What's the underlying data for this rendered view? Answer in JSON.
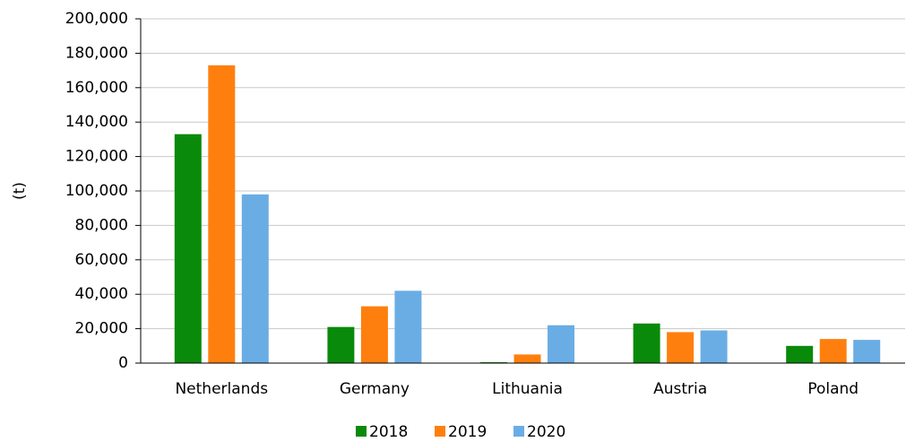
{
  "chart_data": {
    "type": "bar",
    "y_label": "(t)",
    "categories": [
      "Netherlands",
      "Germany",
      "Lithuania",
      "Austria",
      "Poland"
    ],
    "series": [
      {
        "name": "2018",
        "color": "#0a8a0a",
        "values": [
          133000,
          21000,
          500,
          23000,
          10000
        ]
      },
      {
        "name": "2019",
        "color": "#ff7f0e",
        "values": [
          173000,
          33000,
          5000,
          18000,
          14000
        ]
      },
      {
        "name": "2020",
        "color": "#6aade4",
        "values": [
          98000,
          42000,
          22000,
          19000,
          13500
        ]
      }
    ],
    "ylim": [
      0,
      200000
    ],
    "yticks": [
      0,
      {
        "value": 20000,
        "label": "20,000"
      },
      {
        "value": 40000,
        "label": "40,000"
      },
      {
        "value": 60000,
        "label": "60,000"
      },
      {
        "value": 80000,
        "label": "80,000"
      },
      {
        "value": 100000,
        "label": "100,000"
      },
      {
        "value": 120000,
        "label": "120,000"
      },
      {
        "value": 140000,
        "label": "140,000"
      },
      {
        "value": 160000,
        "label": "160,000"
      },
      {
        "value": 180000,
        "label": "180,000"
      },
      {
        "value": 200000,
        "label": "200,000"
      }
    ],
    "grid": true,
    "legend": "bottom"
  }
}
